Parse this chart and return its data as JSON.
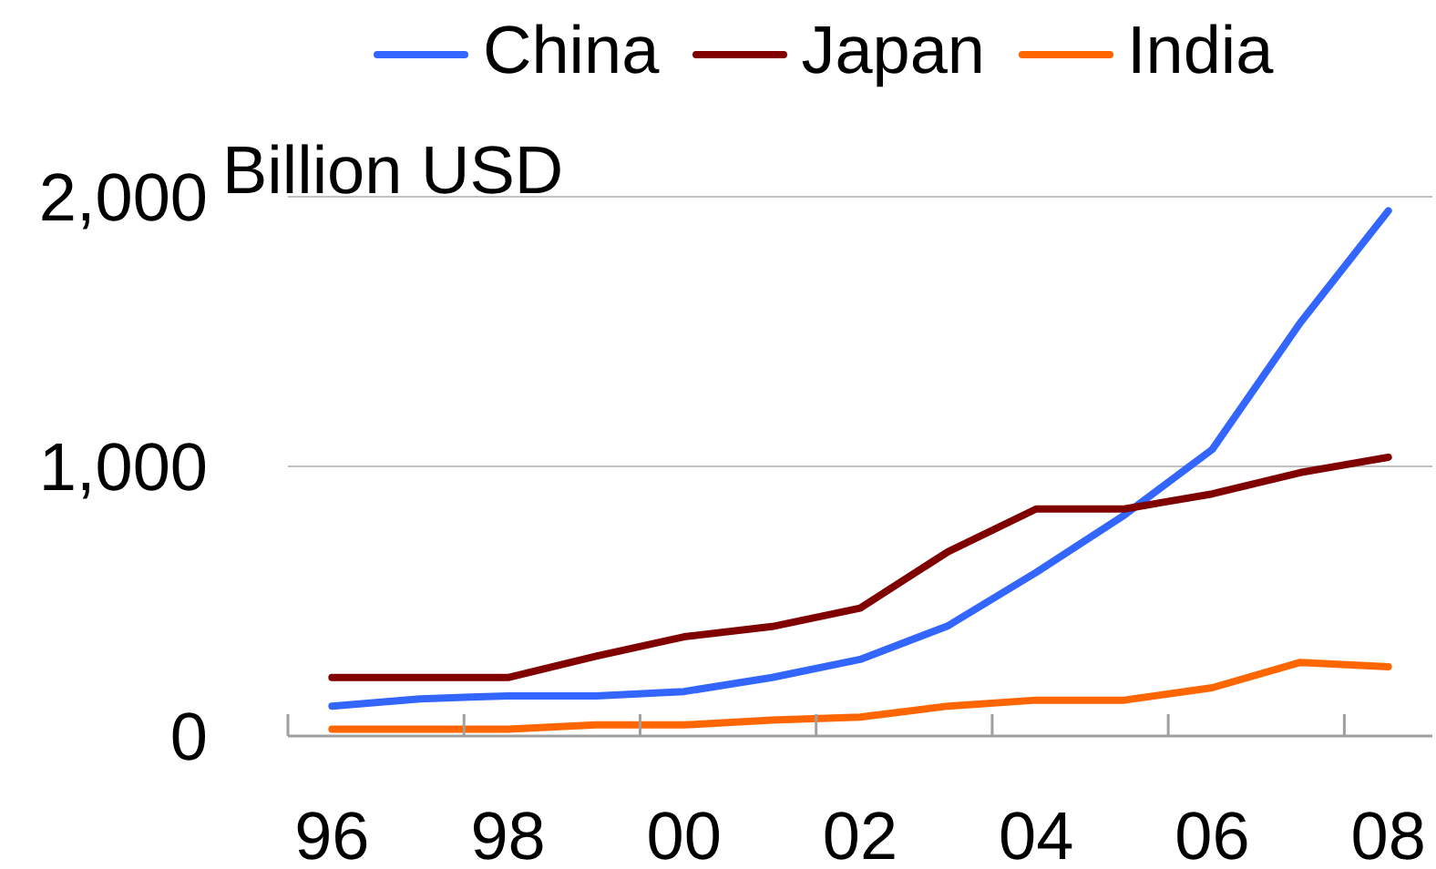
{
  "chart_data": {
    "type": "line",
    "ylabel": "Billion USD",
    "categories": [
      "96",
      null,
      "98",
      null,
      "00",
      null,
      "02",
      null,
      "04",
      null,
      "06",
      null,
      "08"
    ],
    "series": [
      {
        "name": "China",
        "color": "#3366ff",
        "values": [
          111,
          138,
          149,
          149,
          165,
          217,
          284,
          409,
          607,
          819,
          1063,
          1533,
          1948
        ]
      },
      {
        "name": "Japan",
        "color": "#800000",
        "values": [
          217,
          217,
          217,
          296,
          368,
          406,
          474,
          684,
          842,
          842,
          898,
          977,
          1034
        ]
      },
      {
        "name": "India",
        "color": "#ff6600",
        "values": [
          25,
          25,
          25,
          41,
          41,
          59,
          70,
          111,
          133,
          133,
          179,
          273,
          257
        ]
      }
    ],
    "ylim": [
      0,
      2000
    ],
    "yticks": [
      0,
      {
        "value": 1000,
        "label": "1,000"
      },
      {
        "value": 2000,
        "label": "2,000"
      }
    ],
    "grid": "y",
    "legend": "top",
    "marker": "none",
    "line_style": "solid"
  }
}
